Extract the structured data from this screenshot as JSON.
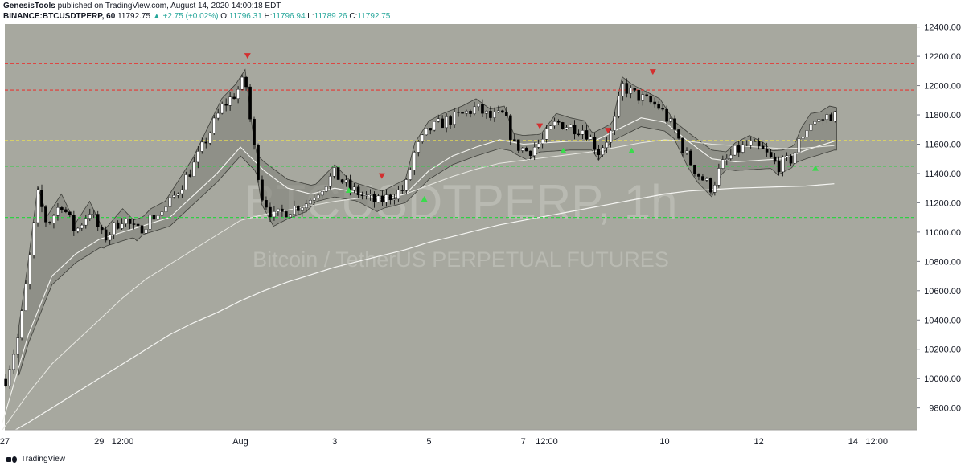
{
  "header": {
    "line1_author": "GenesisTools",
    "line1_rest": "published on TradingView.com, August 14, 2020 14:00:18 EDT",
    "symbol": "BINANCE:BTCUSDTPERP, 60",
    "last": "11792.75",
    "change": "▲ +2.75 (+0.02%)",
    "o_label": "O:",
    "o": "11796.31",
    "h_label": "H:",
    "h": "11796.94",
    "l_label": "L:",
    "l": "11789.26",
    "c_label": "C:",
    "c": "11792.75"
  },
  "footer": {
    "brand": "TradingView"
  },
  "colors": {
    "plot_bg": "#a7a89f",
    "resistance": "#e53935",
    "mid": "#f2e64b",
    "support": "#2fd143",
    "candle_up": "#ffffff",
    "candle_down": "#000000",
    "sell_marker": "#d32f2f",
    "buy_marker": "#3adb4c"
  },
  "chart_data": {
    "type": "candlestick",
    "watermark_symbol": "BTCUSDTPERP, 1h",
    "watermark_desc": "Bitcoin / TetherUS PERPETUAL FUTURES",
    "ylim": [
      9650,
      12420
    ],
    "yticks": [
      9800,
      10000,
      10200,
      10400,
      10600,
      10800,
      11000,
      11200,
      11400,
      11600,
      11800,
      12000,
      12200,
      12400
    ],
    "ytick_labels": [
      "9800.00",
      "10000.00",
      "10200.00",
      "10400.00",
      "10600.00",
      "10800.00",
      "11000.00",
      "11200.00",
      "11400.00",
      "11600.00",
      "11800.00",
      "12000.00",
      "12200.00",
      "12400.00"
    ],
    "xlim": [
      27,
      46.35
    ],
    "xticks": [
      {
        "x": 27,
        "label": "27"
      },
      {
        "x": 29,
        "label": "29"
      },
      {
        "x": 29.5,
        "label": "12:00"
      },
      {
        "x": 32,
        "label": "Aug"
      },
      {
        "x": 34,
        "label": "3"
      },
      {
        "x": 36,
        "label": "5"
      },
      {
        "x": 38,
        "label": "7"
      },
      {
        "x": 38.5,
        "label": "12:00"
      },
      {
        "x": 41,
        "label": "10"
      },
      {
        "x": 43,
        "label": "12"
      },
      {
        "x": 45,
        "label": "14"
      },
      {
        "x": 45.5,
        "label": "12:00"
      }
    ],
    "hlines": [
      {
        "y": 12150,
        "role": "resistance"
      },
      {
        "y": 11970,
        "role": "resistance"
      },
      {
        "y": 11625,
        "role": "mid"
      },
      {
        "y": 11450,
        "role": "support"
      },
      {
        "y": 11100,
        "role": "support"
      }
    ],
    "key_points": [
      [
        26.95,
        9920
      ],
      [
        27.3,
        10300
      ],
      [
        27.5,
        10750
      ],
      [
        27.7,
        11250
      ],
      [
        27.9,
        11050
      ],
      [
        28.2,
        11200
      ],
      [
        28.5,
        11000
      ],
      [
        28.8,
        11150
      ],
      [
        29.1,
        10950
      ],
      [
        29.5,
        11100
      ],
      [
        29.8,
        11000
      ],
      [
        30.1,
        11100
      ],
      [
        30.4,
        11150
      ],
      [
        30.7,
        11300
      ],
      [
        31.0,
        11450
      ],
      [
        31.3,
        11650
      ],
      [
        31.6,
        11850
      ],
      [
        31.9,
        11950
      ],
      [
        32.1,
        12050
      ],
      [
        32.25,
        11650
      ],
      [
        32.45,
        11250
      ],
      [
        32.7,
        11100
      ],
      [
        33.0,
        11150
      ],
      [
        33.4,
        11200
      ],
      [
        33.7,
        11300
      ],
      [
        34.0,
        11400
      ],
      [
        34.3,
        11300
      ],
      [
        34.6,
        11250
      ],
      [
        34.9,
        11200
      ],
      [
        35.2,
        11250
      ],
      [
        35.5,
        11300
      ],
      [
        35.7,
        11550
      ],
      [
        36.0,
        11700
      ],
      [
        36.3,
        11750
      ],
      [
        36.7,
        11800
      ],
      [
        37.0,
        11850
      ],
      [
        37.3,
        11780
      ],
      [
        37.6,
        11800
      ],
      [
        37.8,
        11600
      ],
      [
        38.1,
        11550
      ],
      [
        38.4,
        11620
      ],
      [
        38.7,
        11750
      ],
      [
        39.0,
        11720
      ],
      [
        39.3,
        11700
      ],
      [
        39.6,
        11550
      ],
      [
        39.9,
        11700
      ],
      [
        40.1,
        12000
      ],
      [
        40.3,
        11950
      ],
      [
        40.6,
        11900
      ],
      [
        40.9,
        11850
      ],
      [
        41.2,
        11700
      ],
      [
        41.5,
        11500
      ],
      [
        41.7,
        11400
      ],
      [
        42.0,
        11300
      ],
      [
        42.2,
        11450
      ],
      [
        42.5,
        11550
      ],
      [
        42.8,
        11600
      ],
      [
        43.1,
        11550
      ],
      [
        43.4,
        11450
      ],
      [
        43.7,
        11500
      ],
      [
        43.9,
        11650
      ],
      [
        44.1,
        11750
      ],
      [
        44.3,
        11760
      ],
      [
        44.5,
        11800
      ],
      [
        44.65,
        11790
      ]
    ],
    "ema_fast": [
      [
        26.95,
        9700
      ],
      [
        27.5,
        10300
      ],
      [
        28.0,
        10700
      ],
      [
        28.5,
        10850
      ],
      [
        29.0,
        10950
      ],
      [
        29.5,
        11000
      ],
      [
        30.0,
        11050
      ],
      [
        30.5,
        11100
      ],
      [
        31.0,
        11250
      ],
      [
        31.5,
        11400
      ],
      [
        32.0,
        11580
      ],
      [
        32.5,
        11420
      ],
      [
        33.0,
        11300
      ],
      [
        33.5,
        11260
      ],
      [
        34.0,
        11300
      ],
      [
        34.5,
        11270
      ],
      [
        35.0,
        11220
      ],
      [
        35.5,
        11260
      ],
      [
        36.0,
        11420
      ],
      [
        36.5,
        11520
      ],
      [
        37.0,
        11580
      ],
      [
        37.5,
        11630
      ],
      [
        38.0,
        11600
      ],
      [
        38.5,
        11610
      ],
      [
        39.0,
        11620
      ],
      [
        39.5,
        11620
      ],
      [
        40.0,
        11700
      ],
      [
        40.5,
        11780
      ],
      [
        41.0,
        11750
      ],
      [
        41.5,
        11620
      ],
      [
        42.0,
        11500
      ],
      [
        42.5,
        11480
      ],
      [
        43.0,
        11490
      ],
      [
        43.5,
        11500
      ],
      [
        44.0,
        11560
      ],
      [
        44.6,
        11620
      ]
    ],
    "ema_mid": [
      [
        26.95,
        9650
      ],
      [
        27.5,
        9900
      ],
      [
        28.0,
        10100
      ],
      [
        28.5,
        10250
      ],
      [
        29.0,
        10400
      ],
      [
        29.5,
        10550
      ],
      [
        30.0,
        10680
      ],
      [
        30.5,
        10780
      ],
      [
        31.0,
        10880
      ],
      [
        31.5,
        10980
      ],
      [
        32.0,
        11080
      ],
      [
        32.5,
        11120
      ],
      [
        33.0,
        11150
      ],
      [
        33.5,
        11180
      ],
      [
        34.0,
        11210
      ],
      [
        34.5,
        11230
      ],
      [
        35.0,
        11240
      ],
      [
        35.5,
        11260
      ],
      [
        36.0,
        11320
      ],
      [
        36.5,
        11380
      ],
      [
        37.0,
        11430
      ],
      [
        37.5,
        11470
      ],
      [
        38.0,
        11490
      ],
      [
        38.5,
        11510
      ],
      [
        39.0,
        11530
      ],
      [
        39.5,
        11550
      ],
      [
        40.0,
        11580
      ],
      [
        40.5,
        11610
      ],
      [
        41.0,
        11630
      ],
      [
        41.5,
        11620
      ],
      [
        42.0,
        11600
      ],
      [
        42.5,
        11590
      ],
      [
        43.0,
        11580
      ],
      [
        43.5,
        11570
      ],
      [
        44.0,
        11575
      ],
      [
        44.6,
        11590
      ]
    ],
    "ema_slow": [
      [
        26.95,
        9600
      ],
      [
        27.5,
        9700
      ],
      [
        28.0,
        9800
      ],
      [
        28.5,
        9900
      ],
      [
        29.0,
        10000
      ],
      [
        29.5,
        10100
      ],
      [
        30.0,
        10200
      ],
      [
        30.5,
        10300
      ],
      [
        31.0,
        10380
      ],
      [
        31.5,
        10450
      ],
      [
        32.0,
        10530
      ],
      [
        32.5,
        10600
      ],
      [
        33.0,
        10660
      ],
      [
        33.5,
        10710
      ],
      [
        34.0,
        10760
      ],
      [
        34.5,
        10800
      ],
      [
        35.0,
        10840
      ],
      [
        35.5,
        10880
      ],
      [
        36.0,
        10930
      ],
      [
        36.5,
        10970
      ],
      [
        37.0,
        11010
      ],
      [
        37.5,
        11050
      ],
      [
        38.0,
        11080
      ],
      [
        38.5,
        11110
      ],
      [
        39.0,
        11140
      ],
      [
        39.5,
        11170
      ],
      [
        40.0,
        11200
      ],
      [
        40.5,
        11230
      ],
      [
        41.0,
        11260
      ],
      [
        41.5,
        11280
      ],
      [
        42.0,
        11290
      ],
      [
        42.5,
        11300
      ],
      [
        43.0,
        11305
      ],
      [
        43.5,
        11310
      ],
      [
        44.0,
        11315
      ],
      [
        44.6,
        11330
      ]
    ],
    "sell_markers": [
      [
        32.15,
        12200
      ],
      [
        35.0,
        11380
      ],
      [
        38.35,
        11720
      ],
      [
        39.8,
        11690
      ],
      [
        40.75,
        12090
      ]
    ],
    "buy_markers": [
      [
        34.3,
        11290
      ],
      [
        35.9,
        11230
      ],
      [
        38.85,
        11560
      ],
      [
        40.3,
        11560
      ],
      [
        44.2,
        11440
      ]
    ]
  }
}
